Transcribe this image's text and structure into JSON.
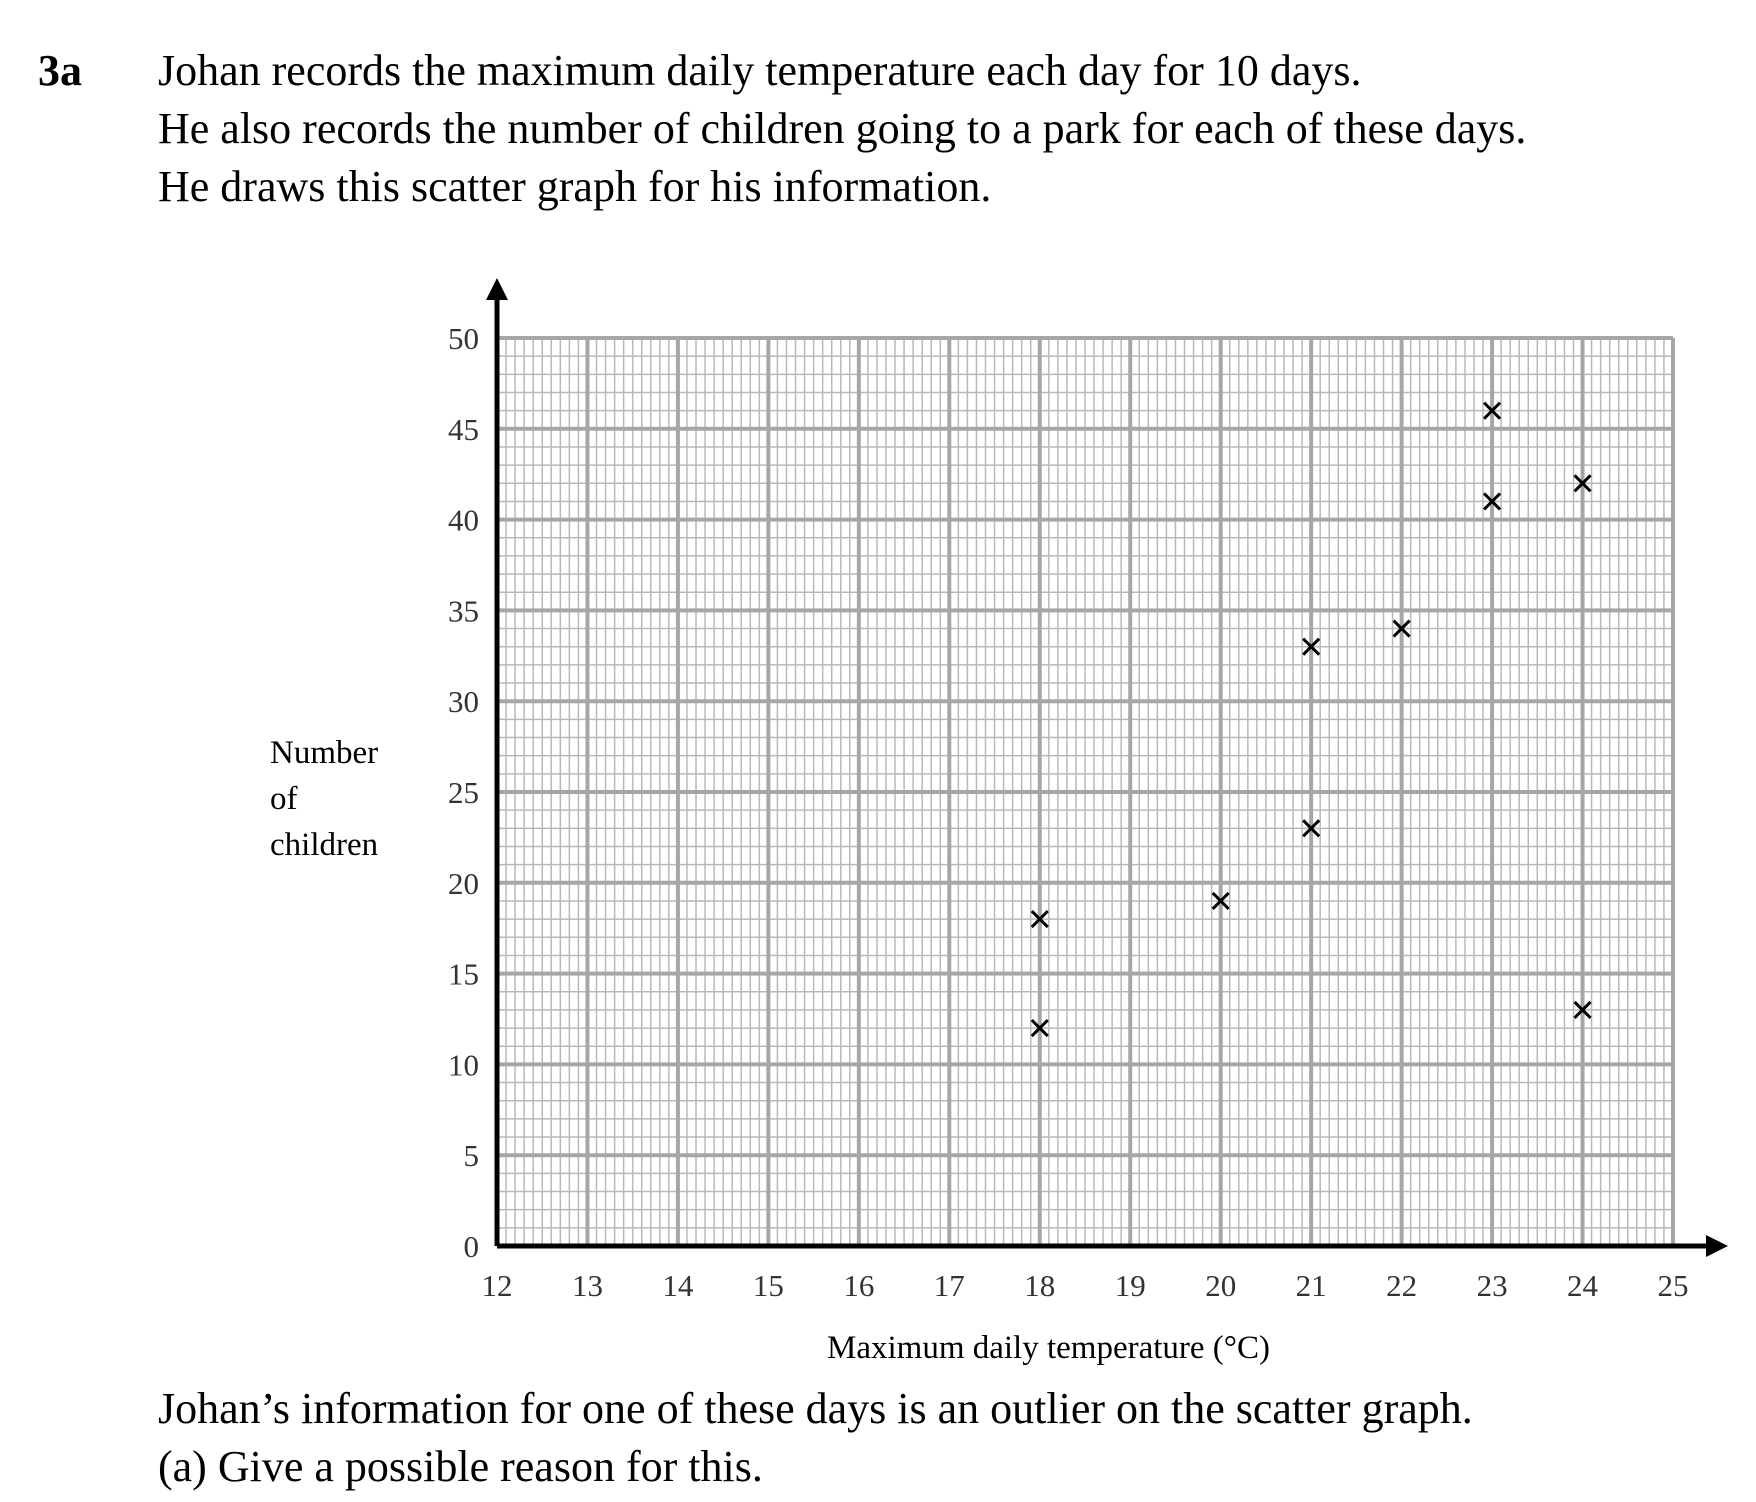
{
  "question": {
    "number": "3a",
    "intro_lines": [
      "Johan records the maximum daily temperature each day for 10 days.",
      "He also records the number of children going to a park for each of these days.",
      "He draws this scatter graph for his information."
    ],
    "footer_lines": [
      "Johan’s information for one of these days is an outlier on the scatter graph.",
      "(a)  Give a possible reason for this."
    ]
  },
  "chart_data": {
    "type": "scatter",
    "xlabel": "Maximum daily temperature (°C)",
    "ylabel_lines": [
      "Number",
      "of",
      "children"
    ],
    "xlim": [
      12,
      25
    ],
    "ylim": [
      0,
      50
    ],
    "x_ticks": [
      "12",
      "13",
      "14",
      "15",
      "16",
      "17",
      "18",
      "19",
      "20",
      "21",
      "22",
      "23",
      "24",
      "25"
    ],
    "y_ticks": [
      "0",
      "5",
      "10",
      "15",
      "20",
      "25",
      "30",
      "35",
      "40",
      "45",
      "50"
    ],
    "grid": true,
    "marker": "×",
    "points": [
      {
        "x": 18,
        "y": 18
      },
      {
        "x": 18,
        "y": 12
      },
      {
        "x": 20,
        "y": 19
      },
      {
        "x": 21,
        "y": 33
      },
      {
        "x": 21,
        "y": 23
      },
      {
        "x": 22,
        "y": 34
      },
      {
        "x": 23,
        "y": 46
      },
      {
        "x": 23,
        "y": 41
      },
      {
        "x": 24,
        "y": 42
      },
      {
        "x": 24,
        "y": 13
      }
    ]
  }
}
